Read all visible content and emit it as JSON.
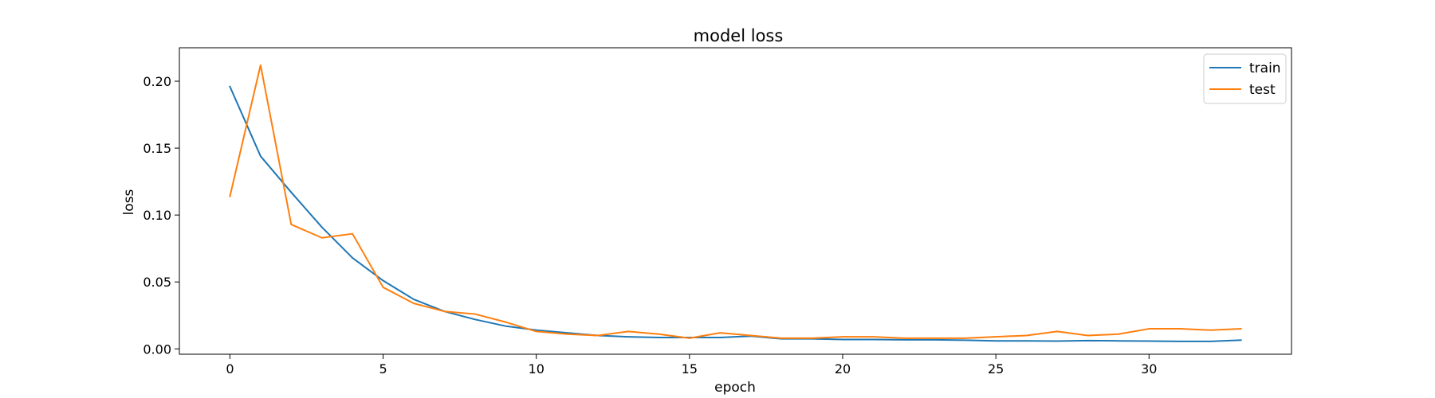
{
  "chart_data": {
    "type": "line",
    "title": "model loss",
    "xlabel": "epoch",
    "ylabel": "loss",
    "xlim": [
      -1.65,
      34.65
    ],
    "ylim": [
      -0.004,
      0.225
    ],
    "xticks": [
      0,
      5,
      10,
      15,
      20,
      25,
      30
    ],
    "yticks": [
      0.0,
      0.05,
      0.1,
      0.15,
      0.2
    ],
    "ytick_labels": [
      "0.00",
      "0.05",
      "0.10",
      "0.15",
      "0.20"
    ],
    "grid": false,
    "legend_position": "top-right",
    "x": [
      0,
      1,
      2,
      3,
      4,
      5,
      6,
      7,
      8,
      9,
      10,
      11,
      12,
      13,
      14,
      15,
      16,
      17,
      18,
      19,
      20,
      21,
      22,
      23,
      24,
      25,
      26,
      27,
      28,
      29,
      30,
      31,
      32,
      33
    ],
    "series": [
      {
        "name": "train",
        "color": "#1f77b4",
        "values": [
          0.196,
          0.144,
          0.117,
          0.091,
          0.068,
          0.051,
          0.037,
          0.028,
          0.022,
          0.017,
          0.014,
          0.012,
          0.01,
          0.009,
          0.0085,
          0.0085,
          0.0085,
          0.0095,
          0.0075,
          0.0075,
          0.007,
          0.007,
          0.0068,
          0.0068,
          0.0065,
          0.006,
          0.006,
          0.0058,
          0.0062,
          0.006,
          0.0058,
          0.0056,
          0.0056,
          0.0065
        ]
      },
      {
        "name": "test",
        "color": "#ff7f0e",
        "values": [
          0.114,
          0.212,
          0.093,
          0.083,
          0.086,
          0.046,
          0.034,
          0.028,
          0.026,
          0.02,
          0.013,
          0.011,
          0.01,
          0.013,
          0.011,
          0.008,
          0.012,
          0.01,
          0.008,
          0.008,
          0.009,
          0.009,
          0.008,
          0.008,
          0.008,
          0.009,
          0.01,
          0.013,
          0.01,
          0.011,
          0.015,
          0.015,
          0.014,
          0.015
        ]
      }
    ]
  }
}
